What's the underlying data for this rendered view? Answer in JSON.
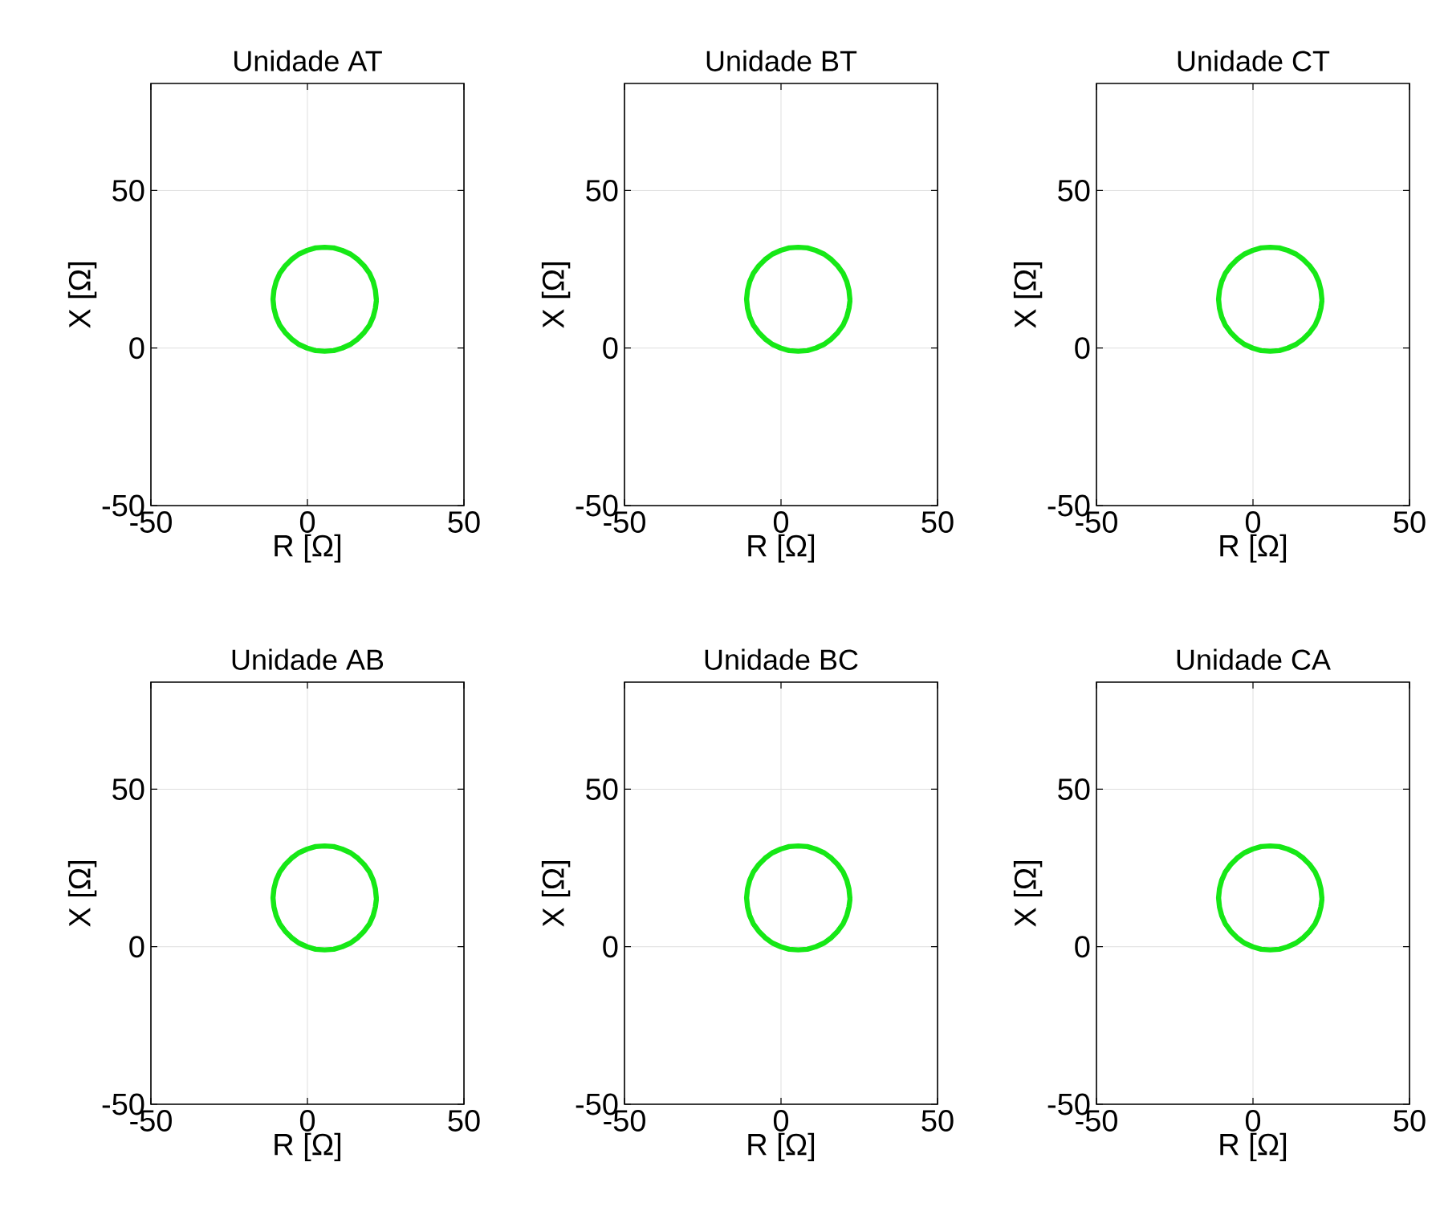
{
  "chart_data": [
    {
      "type": "line",
      "title": "Unidade AT",
      "xlabel": "R [Ω]",
      "ylabel": "X [Ω]",
      "xlim": [
        -50,
        50
      ],
      "ylim": [
        -50,
        84
      ],
      "xticks": [
        -50,
        0,
        50
      ],
      "yticks": [
        -50,
        0,
        50
      ],
      "grid": true,
      "marker": "none",
      "line_style": "solid",
      "x": [
        22.0,
        21.7,
        21.0,
        19.8,
        18.1,
        16.1,
        13.8,
        11.1,
        8.4,
        5.5,
        2.6,
        -0.1,
        -2.8,
        -5.1,
        -7.1,
        -8.8,
        -10.0,
        -10.7,
        -11.0,
        -10.7,
        -10.0,
        -8.8,
        -7.1,
        -5.1,
        -2.8,
        -0.1,
        2.6,
        5.5,
        8.4,
        11.1,
        13.8,
        16.1,
        18.1,
        19.8,
        21.0,
        21.7,
        22.0
      ],
      "series": [
        {
          "color": "#16e816",
          "values": [
            15.5,
            18.4,
            21.1,
            23.8,
            26.1,
            28.1,
            29.8,
            31.0,
            31.8,
            32.0,
            31.8,
            31.0,
            29.8,
            28.1,
            26.1,
            23.8,
            21.1,
            18.4,
            15.5,
            12.6,
            9.9,
            7.2,
            4.9,
            2.9,
            1.2,
            0.0,
            -0.8,
            -1.0,
            -0.8,
            0.0,
            1.2,
            2.9,
            4.9,
            7.2,
            9.9,
            12.6,
            14.9
          ]
        }
      ]
    },
    {
      "type": "line",
      "title": "Unidade BT",
      "xlabel": "R [Ω]",
      "ylabel": "X [Ω]",
      "xlim": [
        -50,
        50
      ],
      "ylim": [
        -50,
        84
      ],
      "xticks": [
        -50,
        0,
        50
      ],
      "yticks": [
        -50,
        0,
        50
      ],
      "grid": true,
      "marker": "none",
      "line_style": "solid",
      "x": [
        22.0,
        21.7,
        21.0,
        19.8,
        18.1,
        16.1,
        13.8,
        11.1,
        8.4,
        5.5,
        2.6,
        -0.1,
        -2.8,
        -5.1,
        -7.1,
        -8.8,
        -10.0,
        -10.7,
        -11.0,
        -10.7,
        -10.0,
        -8.8,
        -7.1,
        -5.1,
        -2.8,
        -0.1,
        2.6,
        5.5,
        8.4,
        11.1,
        13.8,
        16.1,
        18.1,
        19.8,
        21.0,
        21.7,
        22.0
      ],
      "series": [
        {
          "color": "#16e816",
          "values": [
            15.5,
            18.4,
            21.1,
            23.8,
            26.1,
            28.1,
            29.8,
            31.0,
            31.8,
            32.0,
            31.8,
            31.0,
            29.8,
            28.1,
            26.1,
            23.8,
            21.1,
            18.4,
            15.5,
            12.6,
            9.9,
            7.2,
            4.9,
            2.9,
            1.2,
            0.0,
            -0.8,
            -1.0,
            -0.8,
            0.0,
            1.2,
            2.9,
            4.9,
            7.2,
            9.9,
            12.6,
            14.9
          ]
        }
      ]
    },
    {
      "type": "line",
      "title": "Unidade CT",
      "xlabel": "R [Ω]",
      "ylabel": "X [Ω]",
      "xlim": [
        -50,
        50
      ],
      "ylim": [
        -50,
        84
      ],
      "xticks": [
        -50,
        0,
        50
      ],
      "yticks": [
        -50,
        0,
        50
      ],
      "grid": true,
      "marker": "none",
      "line_style": "solid",
      "x": [
        22.0,
        21.7,
        21.0,
        19.8,
        18.1,
        16.1,
        13.8,
        11.1,
        8.4,
        5.5,
        2.6,
        -0.1,
        -2.8,
        -5.1,
        -7.1,
        -8.8,
        -10.0,
        -10.7,
        -11.0,
        -10.7,
        -10.0,
        -8.8,
        -7.1,
        -5.1,
        -2.8,
        -0.1,
        2.6,
        5.5,
        8.4,
        11.1,
        13.8,
        16.1,
        18.1,
        19.8,
        21.0,
        21.7,
        22.0
      ],
      "series": [
        {
          "color": "#16e816",
          "values": [
            15.5,
            18.4,
            21.1,
            23.8,
            26.1,
            28.1,
            29.8,
            31.0,
            31.8,
            32.0,
            31.8,
            31.0,
            29.8,
            28.1,
            26.1,
            23.8,
            21.1,
            18.4,
            15.5,
            12.6,
            9.9,
            7.2,
            4.9,
            2.9,
            1.2,
            0.0,
            -0.8,
            -1.0,
            -0.8,
            0.0,
            1.2,
            2.9,
            4.9,
            7.2,
            9.9,
            12.6,
            14.9
          ]
        }
      ]
    },
    {
      "type": "line",
      "title": "Unidade AB",
      "xlabel": "R [Ω]",
      "ylabel": "X [Ω]",
      "xlim": [
        -50,
        50
      ],
      "ylim": [
        -50,
        84
      ],
      "xticks": [
        -50,
        0,
        50
      ],
      "yticks": [
        -50,
        0,
        50
      ],
      "grid": true,
      "marker": "none",
      "line_style": "solid",
      "x": [
        22.0,
        21.7,
        21.0,
        19.8,
        18.1,
        16.1,
        13.8,
        11.1,
        8.4,
        5.5,
        2.6,
        -0.1,
        -2.8,
        -5.1,
        -7.1,
        -8.8,
        -10.0,
        -10.7,
        -11.0,
        -10.7,
        -10.0,
        -8.8,
        -7.1,
        -5.1,
        -2.8,
        -0.1,
        2.6,
        5.5,
        8.4,
        11.1,
        13.8,
        16.1,
        18.1,
        19.8,
        21.0,
        21.7,
        22.0
      ],
      "series": [
        {
          "color": "#16e816",
          "values": [
            15.5,
            18.4,
            21.1,
            23.8,
            26.1,
            28.1,
            29.8,
            31.0,
            31.8,
            32.0,
            31.8,
            31.0,
            29.8,
            28.1,
            26.1,
            23.8,
            21.1,
            18.4,
            15.5,
            12.6,
            9.9,
            7.2,
            4.9,
            2.9,
            1.2,
            0.0,
            -0.8,
            -1.0,
            -0.8,
            0.0,
            1.2,
            2.9,
            4.9,
            7.2,
            9.9,
            12.6,
            14.9
          ]
        }
      ]
    },
    {
      "type": "line",
      "title": "Unidade BC",
      "xlabel": "R [Ω]",
      "ylabel": "X [Ω]",
      "xlim": [
        -50,
        50
      ],
      "ylim": [
        -50,
        84
      ],
      "xticks": [
        -50,
        0,
        50
      ],
      "yticks": [
        -50,
        0,
        50
      ],
      "grid": true,
      "marker": "none",
      "line_style": "solid",
      "x": [
        22.0,
        21.7,
        21.0,
        19.8,
        18.1,
        16.1,
        13.8,
        11.1,
        8.4,
        5.5,
        2.6,
        -0.1,
        -2.8,
        -5.1,
        -7.1,
        -8.8,
        -10.0,
        -10.7,
        -11.0,
        -10.7,
        -10.0,
        -8.8,
        -7.1,
        -5.1,
        -2.8,
        -0.1,
        2.6,
        5.5,
        8.4,
        11.1,
        13.8,
        16.1,
        18.1,
        19.8,
        21.0,
        21.7,
        22.0
      ],
      "series": [
        {
          "color": "#16e816",
          "values": [
            15.5,
            18.4,
            21.1,
            23.8,
            26.1,
            28.1,
            29.8,
            31.0,
            31.8,
            32.0,
            31.8,
            31.0,
            29.8,
            28.1,
            26.1,
            23.8,
            21.1,
            18.4,
            15.5,
            12.6,
            9.9,
            7.2,
            4.9,
            2.9,
            1.2,
            0.0,
            -0.8,
            -1.0,
            -0.8,
            0.0,
            1.2,
            2.9,
            4.9,
            7.2,
            9.9,
            12.6,
            14.9
          ]
        }
      ]
    },
    {
      "type": "line",
      "title": "Unidade CA",
      "xlabel": "R [Ω]",
      "ylabel": "X [Ω]",
      "xlim": [
        -50,
        50
      ],
      "ylim": [
        -50,
        84
      ],
      "xticks": [
        -50,
        0,
        50
      ],
      "yticks": [
        -50,
        0,
        50
      ],
      "grid": true,
      "marker": "none",
      "line_style": "solid",
      "x": [
        22.0,
        21.7,
        21.0,
        19.8,
        18.1,
        16.1,
        13.8,
        11.1,
        8.4,
        5.5,
        2.6,
        -0.1,
        -2.8,
        -5.1,
        -7.1,
        -8.8,
        -10.0,
        -10.7,
        -11.0,
        -10.7,
        -10.0,
        -8.8,
        -7.1,
        -5.1,
        -2.8,
        -0.1,
        2.6,
        5.5,
        8.4,
        11.1,
        13.8,
        16.1,
        18.1,
        19.8,
        21.0,
        21.7,
        22.0
      ],
      "series": [
        {
          "color": "#16e816",
          "values": [
            15.5,
            18.4,
            21.1,
            23.8,
            26.1,
            28.1,
            29.8,
            31.0,
            31.8,
            32.0,
            31.8,
            31.0,
            29.8,
            28.1,
            26.1,
            23.8,
            21.1,
            18.4,
            15.5,
            12.6,
            9.9,
            7.2,
            4.9,
            2.9,
            1.2,
            0.0,
            -0.8,
            -1.0,
            -0.8,
            0.0,
            1.2,
            2.9,
            4.9,
            7.2,
            9.9,
            12.6,
            14.9
          ]
        }
      ]
    }
  ]
}
